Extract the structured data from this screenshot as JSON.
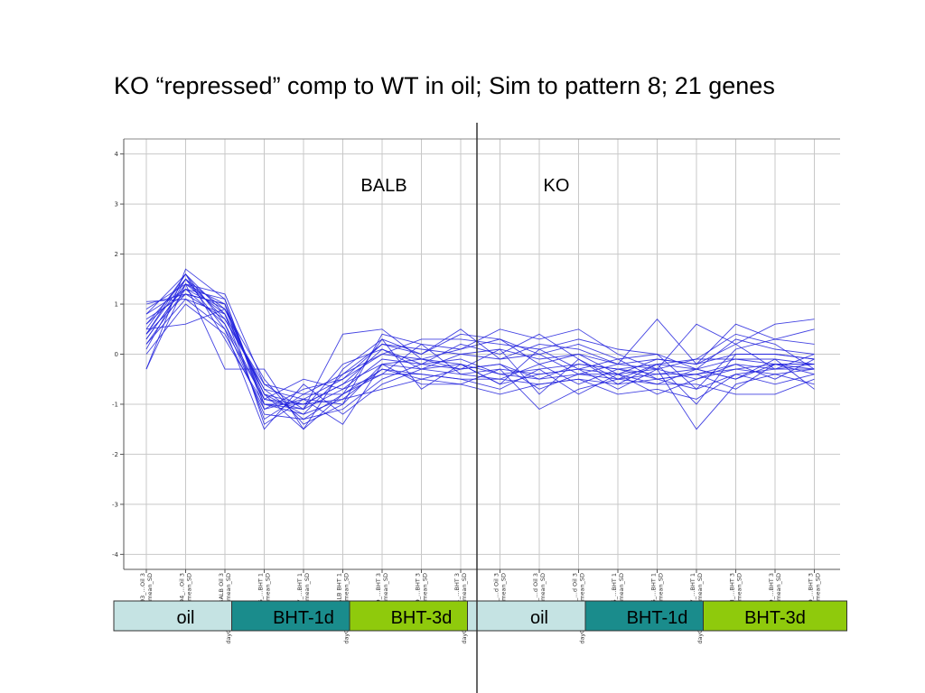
{
  "title": "KO “repressed” comp to WT in oil; Sim to pattern 8; 21 genes",
  "chart_data": {
    "type": "line",
    "ylim": [
      -4.3,
      4.3
    ],
    "yticks": [
      4,
      3,
      2,
      1,
      0,
      -1,
      -2,
      -3,
      -4
    ],
    "grid": true,
    "line_color": "#2222dd",
    "region_labels": [
      "BALB",
      "KO"
    ],
    "categories": [
      {
        "line1": "5293_…Oil 3",
        "line2": "dayCEL…mean_SD"
      },
      {
        "line1": "5294_…Oil 3",
        "line2": "dayCEL…mean_SD"
      },
      {
        "line1": "5295_BALB Oil 3",
        "line2": "dayCEL-unlog_mean_SD"
      },
      {
        "line1": "5296_…BHT 1",
        "line2": "dayCEL…mean_SD"
      },
      {
        "line1": "5297_…BHT 1",
        "line2": "dayCEL…mean_SD"
      },
      {
        "line1": "5298_BALB BHT 1",
        "line2": "dayCEL-unlog_mean_SD"
      },
      {
        "line1": "5299_…BHT 3",
        "line2": "dayCEL…mean_SD"
      },
      {
        "line1": "5300_…BHT 3",
        "line2": "dayCEL…mean_SD"
      },
      {
        "line1": "5301_…BHT 3",
        "line2": "dayCEL-unlog_mean_SD"
      },
      {
        "line1": "5302_…d Oil 3",
        "line2": "dayCEL…mean_SD"
      },
      {
        "line1": "5303_…d Oil 3",
        "line2": "dayCEL…mean_SD"
      },
      {
        "line1": "5304_…d Oil 3",
        "line2": "dayCEL-unlog_mean_SD"
      },
      {
        "line1": "5305_…BHT 1",
        "line2": "dayCEL…mean_SD"
      },
      {
        "line1": "5306_…BHT 1",
        "line2": "dayCEL…mean_SD"
      },
      {
        "line1": "5307_…BHT 1",
        "line2": "dayCEL-unlog_mean_SD"
      },
      {
        "line1": "5308_…BHT 3",
        "line2": "dayCEL…mean_SD"
      },
      {
        "line1": "5309_…BHT 3",
        "line2": "dayCEL…mean_SD"
      },
      {
        "line1": "5310_…BHT 3",
        "line2": "dayCEL…mean_SD"
      }
    ],
    "conditions": [
      {
        "label": "oil",
        "color": "#c5e3e3",
        "start": 0,
        "end": 2
      },
      {
        "label": "BHT-1d",
        "color": "#1a8c8c",
        "start": 3,
        "end": 5
      },
      {
        "label": "BHT-3d",
        "color": "#8fca0c",
        "start": 6,
        "end": 8
      },
      {
        "label": "oil",
        "color": "#c5e3e3",
        "start": 9,
        "end": 11
      },
      {
        "label": "BHT-1d",
        "color": "#1a8c8c",
        "start": 12,
        "end": 14
      },
      {
        "label": "BHT-3d",
        "color": "#8fca0c",
        "start": 15,
        "end": 17
      }
    ],
    "series": [
      {
        "values": [
          0.4,
          1.5,
          0.9,
          -0.8,
          -1.0,
          -0.6,
          -0.2,
          -0.3,
          -0.4,
          -0.3,
          -0.4,
          -0.3,
          -0.4,
          -0.3,
          -0.5,
          -0.2,
          -0.3,
          -0.2
        ]
      },
      {
        "values": [
          0.3,
          1.4,
          1.0,
          -0.9,
          -1.1,
          -0.7,
          -0.1,
          -0.2,
          -0.3,
          -0.2,
          -0.5,
          -0.4,
          -0.5,
          -0.4,
          -0.4,
          -0.3,
          -0.2,
          -0.3
        ]
      },
      {
        "values": [
          0.5,
          1.6,
          0.8,
          -0.7,
          -0.9,
          -0.5,
          0.0,
          -0.1,
          -0.2,
          -0.4,
          -0.3,
          -0.2,
          -0.3,
          -0.2,
          -0.3,
          -0.1,
          -0.1,
          -0.2
        ]
      },
      {
        "values": [
          0.8,
          1.3,
          0.6,
          -1.2,
          -1.3,
          -0.8,
          -0.4,
          -0.4,
          -0.5,
          -0.5,
          -0.6,
          -0.5,
          -0.6,
          -0.5,
          -0.7,
          -0.4,
          -0.3,
          -0.3
        ]
      },
      {
        "values": [
          1.0,
          1.2,
          0.7,
          -0.6,
          -0.8,
          -0.4,
          0.2,
          0.1,
          0.0,
          0.1,
          -0.1,
          0.0,
          -0.2,
          -0.1,
          -0.2,
          0.0,
          0.0,
          -0.1
        ]
      },
      {
        "values": [
          -0.3,
          1.7,
          1.1,
          -1.0,
          -1.2,
          -0.9,
          -0.3,
          -0.5,
          -0.3,
          -0.2,
          -0.7,
          -0.4,
          -0.4,
          -0.6,
          -0.3,
          -0.5,
          -0.2,
          -0.4
        ]
      },
      {
        "values": [
          0.2,
          1.3,
          0.9,
          -0.5,
          -1.4,
          -1.0,
          0.4,
          0.2,
          0.1,
          0.3,
          0.0,
          0.2,
          -0.1,
          0.0,
          -0.3,
          0.3,
          0.1,
          0.0
        ]
      },
      {
        "values": [
          0.6,
          1.5,
          0.5,
          -1.5,
          -0.6,
          -1.2,
          -0.6,
          -0.3,
          -0.2,
          -0.6,
          -0.4,
          -0.3,
          -0.7,
          -0.3,
          -1.5,
          -0.6,
          -0.4,
          -0.3
        ]
      },
      {
        "values": [
          1.05,
          1.1,
          0.8,
          -0.8,
          -1.5,
          -0.3,
          0.3,
          0.0,
          0.5,
          -0.1,
          0.2,
          0.1,
          -0.2,
          0.7,
          -0.2,
          0.6,
          0.3,
          0.5
        ]
      },
      {
        "values": [
          0.0,
          1.0,
          0.4,
          -1.1,
          -0.9,
          -1.4,
          -0.2,
          -0.6,
          -0.6,
          -0.3,
          -1.1,
          -0.7,
          -0.5,
          -0.6,
          -0.6,
          -0.8,
          -0.8,
          -0.5
        ]
      },
      {
        "values": [
          0.9,
          1.4,
          1.2,
          -0.6,
          -1.1,
          0.4,
          0.5,
          -0.1,
          0.1,
          0.5,
          0.3,
          0.5,
          0.0,
          -0.3,
          0.6,
          0.2,
          0.6,
          0.7
        ]
      },
      {
        "values": [
          0.4,
          1.6,
          0.6,
          -0.9,
          -0.5,
          -0.7,
          -0.4,
          0.2,
          -0.4,
          -0.5,
          -0.2,
          -0.6,
          -0.3,
          -0.5,
          -0.4,
          -0.2,
          -0.5,
          -0.1
        ]
      },
      {
        "values": [
          0.7,
          1.2,
          1.0,
          -1.0,
          -1.0,
          -0.6,
          0.1,
          -0.2,
          0.2,
          0.0,
          0.4,
          -0.1,
          -0.6,
          -0.2,
          -0.1,
          0.4,
          0.2,
          -0.3
        ]
      },
      {
        "values": [
          0.3,
          1.4,
          0.8,
          -1.3,
          -0.8,
          -0.8,
          -0.3,
          -0.4,
          -0.5,
          -0.7,
          -0.3,
          -0.8,
          -0.4,
          -0.8,
          -0.5,
          -0.3,
          -0.4,
          -0.6
        ]
      },
      {
        "values": [
          0.5,
          0.6,
          0.9,
          -0.8,
          -1.2,
          -0.4,
          0.0,
          0.3,
          0.3,
          0.2,
          0.1,
          0.3,
          0.1,
          0.0,
          -0.7,
          0.1,
          0.3,
          0.2
        ]
      },
      {
        "values": [
          0.1,
          1.5,
          0.7,
          -0.7,
          -1.3,
          -1.1,
          -0.5,
          -0.2,
          -0.1,
          -0.4,
          -0.5,
          -0.2,
          -0.3,
          -0.4,
          -0.3,
          -0.5,
          -0.1,
          -0.7
        ]
      },
      {
        "values": [
          0.6,
          1.3,
          1.1,
          -1.1,
          -0.7,
          -0.5,
          0.2,
          0.0,
          0.4,
          0.3,
          -0.2,
          0.0,
          -0.4,
          -0.1,
          -0.2,
          0.2,
          -0.3,
          0.0
        ]
      },
      {
        "values": [
          0.2,
          1.1,
          0.5,
          -0.9,
          -1.0,
          -0.9,
          -0.7,
          -0.5,
          -0.6,
          -0.8,
          -0.6,
          -0.5,
          -0.8,
          -0.7,
          -0.9,
          -0.4,
          -0.6,
          -0.4
        ]
      },
      {
        "values": [
          0.8,
          1.6,
          0.3,
          -1.0,
          -1.1,
          -0.2,
          0.1,
          -0.3,
          0.0,
          -0.1,
          0.0,
          -0.4,
          -0.2,
          -0.3,
          -0.1,
          -0.1,
          -0.2,
          -0.2
        ]
      },
      {
        "values": [
          0.4,
          1.2,
          1.0,
          -1.4,
          -0.9,
          -1.0,
          -0.2,
          -0.1,
          -0.3,
          0.1,
          -0.8,
          -0.1,
          -0.5,
          -0.2,
          -1.0,
          0.0,
          0.0,
          -0.1
        ]
      },
      {
        "values": [
          -0.3,
          1.4,
          -0.3,
          -0.3,
          -1.5,
          -0.8,
          0.3,
          -0.7,
          -0.2,
          -0.6,
          0.1,
          -0.3,
          -0.1,
          -0.5,
          -0.4,
          -0.7,
          -0.2,
          -0.2
        ]
      }
    ]
  }
}
